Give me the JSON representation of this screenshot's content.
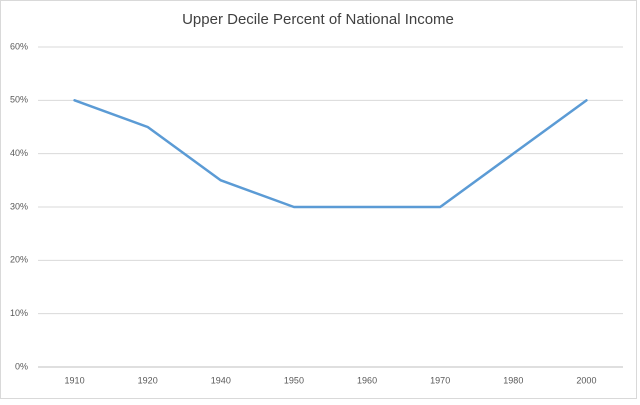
{
  "chart_data": {
    "type": "line",
    "title": "Upper Decile Percent of National Income",
    "categories": [
      "1910",
      "1920",
      "1940",
      "1950",
      "1960",
      "1970",
      "1980",
      "2000"
    ],
    "series": [
      {
        "color": "#5b9bd5",
        "values": [
          50,
          45,
          35,
          30,
          30,
          30,
          40,
          50
        ]
      }
    ],
    "ylim": [
      0,
      60
    ],
    "yticks": [
      {
        "value": 0,
        "label": "0%"
      },
      {
        "value": 10,
        "label": "10%"
      },
      {
        "value": 20,
        "label": "20%"
      },
      {
        "value": 30,
        "label": "30%"
      },
      {
        "value": 40,
        "label": "40%"
      },
      {
        "value": 50,
        "label": "50%"
      },
      {
        "value": 60,
        "label": "60%"
      }
    ],
    "grid": true
  }
}
